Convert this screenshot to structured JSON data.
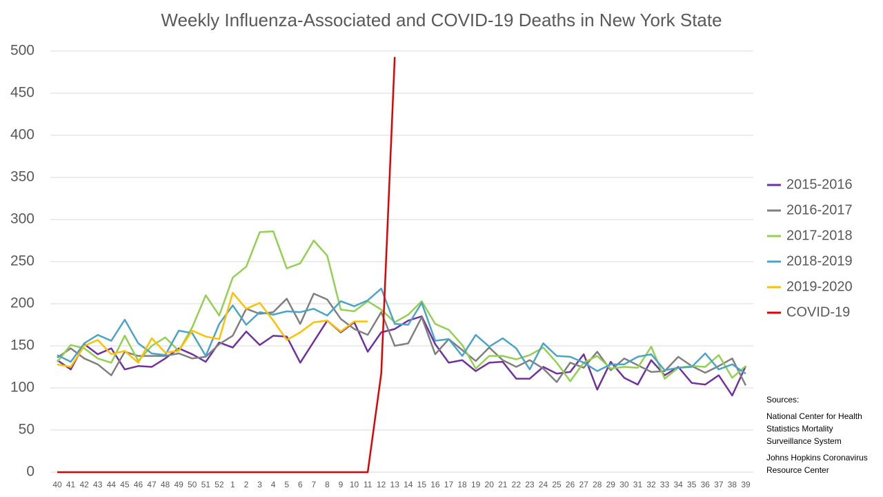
{
  "chart_data": {
    "type": "line",
    "title": "Weekly Influenza-Associated and COVID-19 Deaths in New York State",
    "categories": [
      "40",
      "41",
      "42",
      "43",
      "44",
      "45",
      "46",
      "47",
      "48",
      "49",
      "50",
      "51",
      "52",
      "1",
      "2",
      "3",
      "4",
      "5",
      "6",
      "7",
      "8",
      "9",
      "10",
      "11",
      "12",
      "13",
      "14",
      "15",
      "16",
      "17",
      "18",
      "19",
      "20",
      "21",
      "22",
      "23",
      "24",
      "25",
      "26",
      "27",
      "28",
      "29",
      "30",
      "31",
      "32",
      "33",
      "34",
      "35",
      "36",
      "37",
      "38",
      "39"
    ],
    "series": [
      {
        "name": "2015-2016",
        "color": "#7030a0",
        "values": [
          133,
          122,
          152,
          140,
          147,
          122,
          126,
          125,
          135,
          147,
          140,
          131,
          154,
          148,
          167,
          151,
          162,
          161,
          130,
          155,
          180,
          166,
          178,
          143,
          166,
          170,
          180,
          185,
          152,
          130,
          133,
          120,
          130,
          131,
          111,
          111,
          125,
          117,
          119,
          140,
          98,
          131,
          112,
          104,
          133,
          115,
          125,
          106,
          104,
          115,
          91,
          126
        ]
      },
      {
        "name": "2016-2017",
        "color": "#7f7f7f",
        "values": [
          136,
          147,
          135,
          128,
          115,
          143,
          138,
          138,
          138,
          141,
          135,
          137,
          152,
          162,
          194,
          188,
          190,
          206,
          176,
          212,
          205,
          182,
          170,
          163,
          190,
          150,
          153,
          184,
          140,
          158,
          145,
          132,
          148,
          133,
          125,
          133,
          123,
          107,
          130,
          124,
          143,
          121,
          135,
          127,
          119,
          120,
          137,
          126,
          118,
          126,
          135,
          103
        ]
      },
      {
        "name": "2017-2018",
        "color": "#92d050",
        "values": [
          131,
          151,
          147,
          135,
          130,
          162,
          132,
          150,
          160,
          144,
          172,
          210,
          186,
          231,
          244,
          285,
          286,
          242,
          248,
          275,
          257,
          193,
          191,
          203,
          193,
          178,
          187,
          203,
          176,
          169,
          151,
          123,
          138,
          138,
          134,
          139,
          148,
          130,
          108,
          130,
          138,
          123,
          125,
          124,
          149,
          111,
          124,
          126,
          125,
          139,
          112,
          126
        ]
      },
      {
        "name": "2018-2019",
        "color": "#4ba3c7",
        "values": [
          139,
          131,
          153,
          163,
          156,
          181,
          153,
          141,
          139,
          168,
          165,
          138,
          176,
          198,
          175,
          190,
          187,
          191,
          190,
          194,
          186,
          203,
          197,
          204,
          218,
          176,
          175,
          201,
          156,
          158,
          138,
          163,
          149,
          159,
          147,
          122,
          153,
          138,
          137,
          130,
          120,
          128,
          128,
          137,
          140,
          121,
          124,
          125,
          141,
          122,
          128,
          117
        ]
      },
      {
        "name": "2019-2020",
        "color": "#ffc000",
        "values": [
          128,
          125,
          150,
          157,
          140,
          144,
          130,
          159,
          142,
          144,
          168,
          161,
          158,
          213,
          194,
          201,
          180,
          157,
          166,
          178,
          180,
          167,
          179,
          179,
          null,
          null,
          null,
          null,
          null,
          null,
          null,
          null,
          null,
          null,
          null,
          null,
          null,
          null,
          null,
          null,
          null,
          null,
          null,
          null,
          null,
          null,
          null,
          null,
          null,
          null,
          null,
          null
        ]
      },
      {
        "name": "COVID-19",
        "color": "#e00000",
        "values": [
          0,
          0,
          0,
          0,
          0,
          0,
          0,
          0,
          0,
          0,
          0,
          0,
          0,
          0,
          0,
          0,
          0,
          0,
          0,
          0,
          0,
          0,
          0,
          0,
          117,
          493,
          null,
          null,
          null,
          null,
          null,
          null,
          null,
          null,
          null,
          null,
          null,
          null,
          null,
          null,
          null,
          null,
          null,
          null,
          null,
          null,
          null,
          null,
          null,
          null,
          null,
          null
        ]
      }
    ],
    "ylim": [
      0,
      500
    ],
    "yticks": [
      0,
      50,
      100,
      150,
      200,
      250,
      300,
      350,
      400,
      450,
      500
    ],
    "grid": true,
    "legend": "right",
    "sources": [
      "Sources:",
      "National Center for Health Statistics Mortality Surveillance System",
      "Johns Hopkins Coronavirus Resource Center"
    ]
  }
}
